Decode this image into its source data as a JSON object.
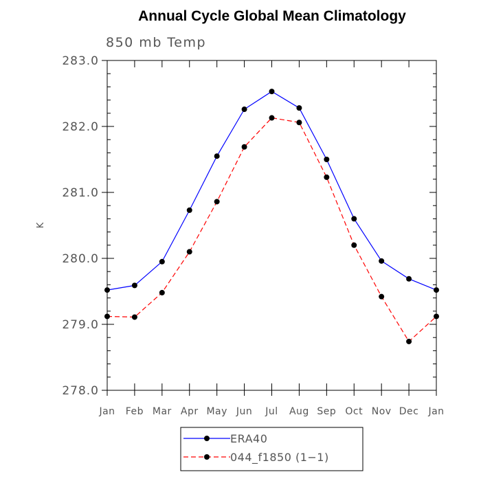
{
  "chart_data": {
    "type": "line",
    "title": "Annual Cycle Global Mean Climatology",
    "subtitle": "850 mb Temp",
    "xlabel": "",
    "ylabel": "K",
    "categories": [
      "Jan",
      "Feb",
      "Mar",
      "Apr",
      "May",
      "Jun",
      "Jul",
      "Aug",
      "Sep",
      "Oct",
      "Nov",
      "Dec",
      "Jan"
    ],
    "ylim": [
      278.0,
      283.0
    ],
    "yticks": [
      "278.0",
      "279.0",
      "280.0",
      "281.0",
      "282.0",
      "283.0"
    ],
    "grid": false,
    "legend_position": "bottom",
    "series": [
      {
        "name": "ERA40",
        "color": "#0000ff",
        "line_style": "solid",
        "values": [
          279.52,
          279.59,
          279.95,
          280.73,
          281.55,
          282.26,
          282.53,
          282.28,
          281.5,
          280.6,
          279.96,
          279.69,
          279.52
        ]
      },
      {
        "name": "044_f1850 (1−1)",
        "color": "#ff0000",
        "line_style": "dashed",
        "values": [
          279.12,
          279.11,
          279.48,
          280.1,
          280.86,
          281.69,
          282.13,
          282.06,
          281.23,
          280.2,
          279.42,
          278.74,
          279.12
        ]
      }
    ]
  }
}
